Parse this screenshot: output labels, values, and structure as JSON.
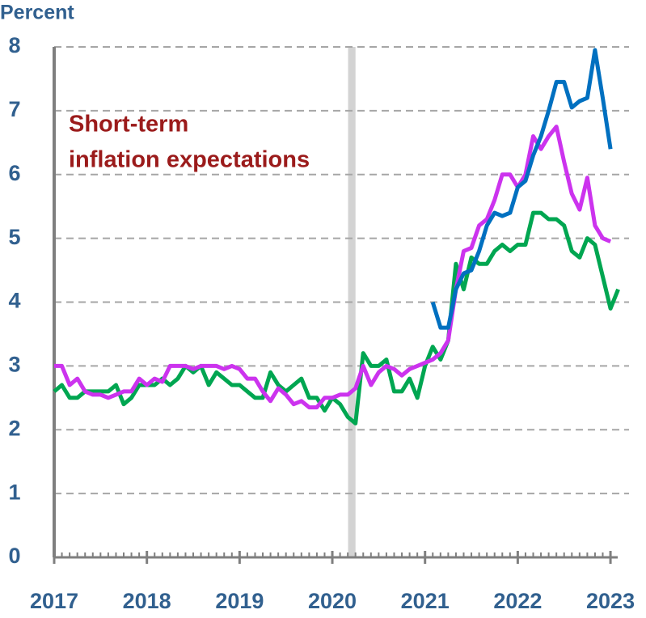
{
  "chart_data": {
    "type": "line",
    "y_axis_label": "Percent",
    "annotation": [
      "Short-term",
      "inflation expectations"
    ],
    "annotation_color": "#9b1b1b",
    "shaded_x": [
      2020.17,
      2020.25
    ],
    "xlim": [
      2017,
      2023.2
    ],
    "xticks": [
      2017,
      2018,
      2019,
      2020,
      2021,
      2022,
      2023
    ],
    "ylim": [
      0,
      8
    ],
    "yticks": [
      0,
      1,
      2,
      3,
      4,
      5,
      6,
      7,
      8
    ],
    "grid": true,
    "x": [
      2017,
      2017.083,
      2017.167,
      2017.25,
      2017.333,
      2017.417,
      2017.5,
      2017.583,
      2017.667,
      2017.75,
      2017.833,
      2017.917,
      2018,
      2018.083,
      2018.167,
      2018.25,
      2018.333,
      2018.417,
      2018.5,
      2018.583,
      2018.667,
      2018.75,
      2018.833,
      2018.917,
      2019,
      2019.083,
      2019.167,
      2019.25,
      2019.333,
      2019.417,
      2019.5,
      2019.583,
      2019.667,
      2019.75,
      2019.833,
      2019.917,
      2020,
      2020.083,
      2020.167,
      2020.25,
      2020.333,
      2020.417,
      2020.5,
      2020.583,
      2020.667,
      2020.75,
      2020.833,
      2020.917,
      2021,
      2021.083,
      2021.167,
      2021.25,
      2021.333,
      2021.417,
      2021.5,
      2021.583,
      2021.667,
      2021.75,
      2021.833,
      2021.917,
      2022,
      2022.083,
      2022.167,
      2022.25,
      2022.333,
      2022.417,
      2022.5,
      2022.583,
      2022.667,
      2022.75,
      2022.833,
      2022.917,
      2023,
      2023.083
    ],
    "series": [
      {
        "color": "#00a651",
        "values": [
          2.6,
          2.7,
          2.5,
          2.5,
          2.6,
          2.6,
          2.6,
          2.6,
          2.7,
          2.4,
          2.5,
          2.7,
          2.7,
          2.7,
          2.8,
          2.7,
          2.8,
          3.0,
          2.9,
          3.0,
          2.7,
          2.9,
          2.8,
          2.7,
          2.7,
          2.6,
          2.5,
          2.5,
          2.9,
          2.7,
          2.6,
          2.7,
          2.8,
          2.5,
          2.5,
          2.3,
          2.5,
          2.4,
          2.2,
          2.1,
          3.2,
          3.0,
          3.0,
          3.1,
          2.6,
          2.6,
          2.8,
          2.5,
          3.0,
          3.3,
          3.1,
          3.4,
          4.6,
          4.2,
          4.7,
          4.6,
          4.6,
          4.8,
          4.9,
          4.8,
          4.9,
          4.9,
          5.4,
          5.4,
          5.3,
          5.3,
          5.2,
          4.8,
          4.7,
          5.0,
          4.9,
          4.4,
          3.9,
          4.2
        ]
      },
      {
        "color": "#cc33ee",
        "values": [
          3.0,
          3.0,
          2.7,
          2.8,
          2.6,
          2.55,
          2.55,
          2.5,
          2.55,
          2.6,
          2.6,
          2.8,
          2.7,
          2.8,
          2.75,
          3.0,
          3.0,
          3.0,
          2.95,
          3.0,
          3.0,
          3.0,
          2.95,
          3.0,
          2.95,
          2.8,
          2.8,
          2.6,
          2.45,
          2.65,
          2.55,
          2.4,
          2.45,
          2.35,
          2.35,
          2.5,
          2.5,
          2.55,
          2.55,
          2.65,
          3.0,
          2.7,
          2.9,
          3.0,
          2.95,
          2.85,
          2.95,
          3.0,
          3.05,
          3.1,
          3.2,
          3.4,
          4.2,
          4.8,
          4.85,
          5.2,
          5.3,
          5.6,
          6.0,
          6.0,
          5.8,
          6.0,
          6.6,
          6.4,
          6.6,
          6.75,
          6.2,
          5.7,
          5.45,
          5.95,
          5.2,
          5.0,
          4.95,
          null
        ]
      },
      {
        "color": "#0070c0",
        "values": [
          null,
          null,
          null,
          null,
          null,
          null,
          null,
          null,
          null,
          null,
          null,
          null,
          null,
          null,
          null,
          null,
          null,
          null,
          null,
          null,
          null,
          null,
          null,
          null,
          null,
          null,
          null,
          null,
          null,
          null,
          null,
          null,
          null,
          null,
          null,
          null,
          null,
          null,
          null,
          null,
          null,
          null,
          null,
          null,
          null,
          null,
          null,
          null,
          null,
          4.0,
          3.6,
          3.6,
          4.2,
          4.45,
          4.5,
          4.8,
          5.2,
          5.4,
          5.35,
          5.4,
          5.8,
          5.9,
          6.3,
          6.6,
          7.0,
          7.45,
          7.45,
          7.05,
          7.15,
          7.2,
          7.95,
          7.2,
          6.4,
          null
        ]
      }
    ]
  }
}
